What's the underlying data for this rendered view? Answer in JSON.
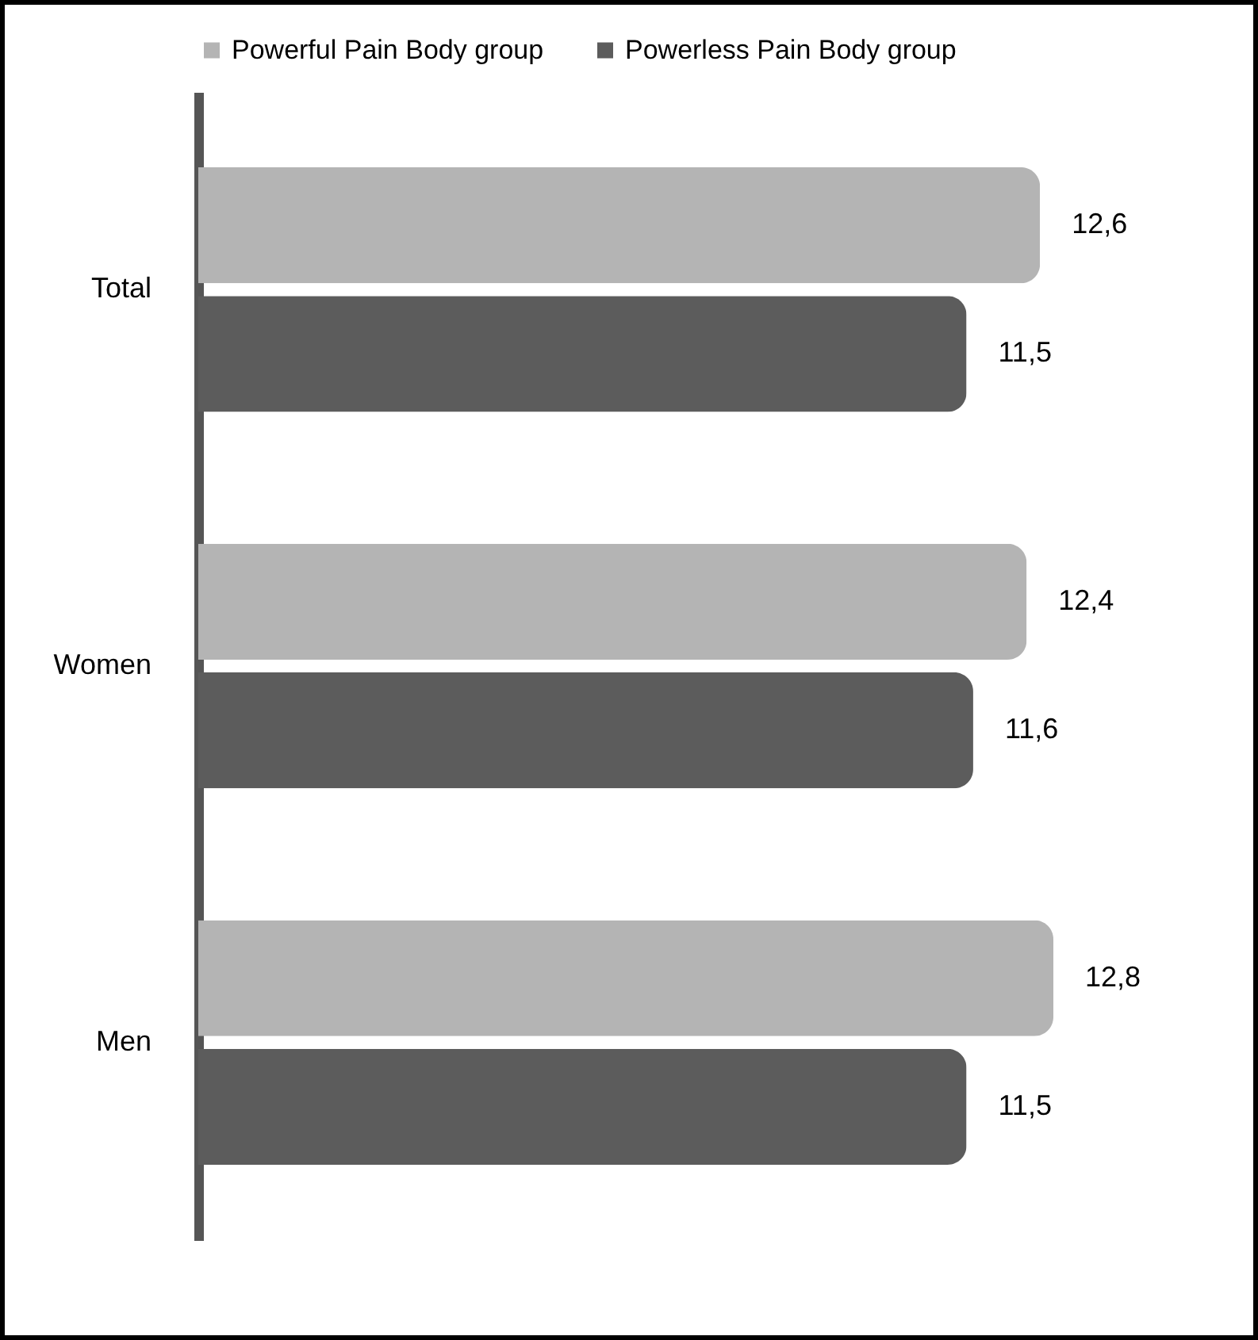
{
  "chart_data": {
    "type": "bar",
    "orientation": "horizontal",
    "categories": [
      "Total",
      "Women",
      "Men"
    ],
    "series": [
      {
        "name": "Powerful Pain Body group",
        "color": "#b4b4b4",
        "values": [
          12.6,
          12.4,
          12.8
        ],
        "value_labels": [
          "12,6",
          "12,4",
          "12,8"
        ]
      },
      {
        "name": "Powerless Pain Body group",
        "color": "#5c5c5c",
        "values": [
          11.5,
          11.6,
          11.5
        ],
        "value_labels": [
          "11,5",
          "11,6",
          "11,5"
        ]
      }
    ],
    "tick_labels": "y",
    "legend": "top"
  }
}
